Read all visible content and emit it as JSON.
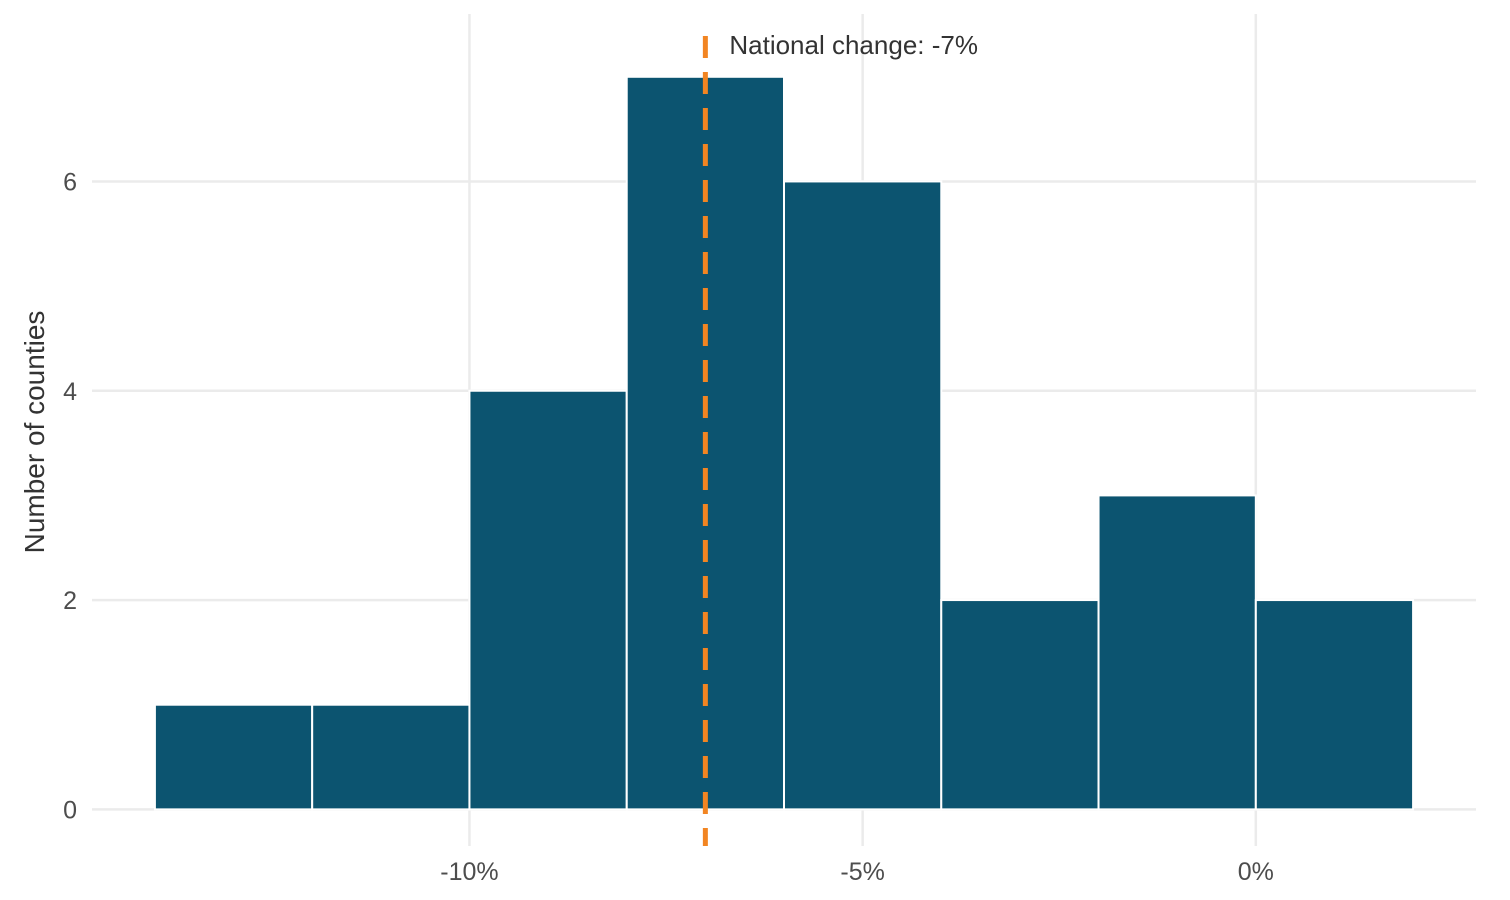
{
  "chart_data": {
    "type": "bar",
    "subtype": "histogram",
    "title": "",
    "xlabel": "",
    "ylabel": "Number of counties",
    "bins": [
      {
        "x0": -14,
        "x1": -12,
        "count": 1
      },
      {
        "x0": -12,
        "x1": -10,
        "count": 1
      },
      {
        "x0": -10,
        "x1": -8,
        "count": 4
      },
      {
        "x0": -8,
        "x1": -6,
        "count": 7
      },
      {
        "x0": -6,
        "x1": -4,
        "count": 6
      },
      {
        "x0": -4,
        "x1": -2,
        "count": 2
      },
      {
        "x0": -2,
        "x1": 0,
        "count": 3
      },
      {
        "x0": 0,
        "x1": 2,
        "count": 2
      }
    ],
    "xlim": [
      -14.8,
      2.8
    ],
    "ylim": [
      -0.35,
      7.6
    ],
    "x_ticks": [
      {
        "value": -10,
        "label": "-10%"
      },
      {
        "value": -5,
        "label": "-5%"
      },
      {
        "value": 0,
        "label": "0%"
      }
    ],
    "y_ticks": [
      {
        "value": 0,
        "label": "0"
      },
      {
        "value": 2,
        "label": "2"
      },
      {
        "value": 4,
        "label": "4"
      },
      {
        "value": 6,
        "label": "6"
      }
    ],
    "reference_line": {
      "x": -7,
      "label": "National change: -7%",
      "style": "dashed",
      "color": "#f28522"
    },
    "bar_color": "#0c5470",
    "grid": true,
    "legend": "none"
  }
}
